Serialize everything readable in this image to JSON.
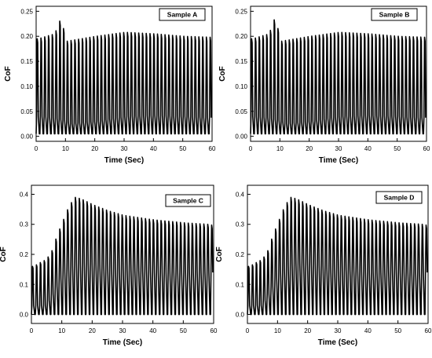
{
  "figure": {
    "background": "#ffffff",
    "line_color": "#000000"
  },
  "chart_data": [
    {
      "type": "line",
      "label": "Sample A",
      "xlabel": "Time (Sec)",
      "ylabel": "CoF",
      "xlim": [
        0,
        60
      ],
      "ylim": [
        -0.01,
        0.26
      ],
      "xticks": [
        0,
        10,
        20,
        30,
        40,
        50,
        60
      ],
      "yticks": [
        0.0,
        0.05,
        0.1,
        0.15,
        0.2,
        0.25
      ],
      "ytick_decimals": 2,
      "legend_position": "top-right",
      "grid": false,
      "series": [
        {
          "cycles_per_sec": 0.78,
          "peak": {
            "x": [
              0.5,
              2,
              6,
              8,
              9,
              10,
              15,
              20,
              30,
              40,
              50,
              60
            ],
            "y": [
              0.195,
              0.198,
              0.205,
              0.235,
              0.215,
              0.19,
              0.195,
              0.2,
              0.208,
              0.205,
              0.2,
              0.198
            ]
          },
          "shoulder": {
            "x": [
              0,
              5,
              10,
              11,
              20,
              30,
              40,
              50,
              60
            ],
            "y": [
              0.04,
              0.038,
              0.03,
              0.025,
              0.03,
              0.04,
              0.042,
              0.04,
              0.037
            ]
          },
          "trough": {
            "x": [
              0,
              60
            ],
            "y": [
              0.005,
              0.005
            ]
          }
        }
      ]
    },
    {
      "type": "line",
      "label": "Sample B",
      "xlabel": "Time (Sec)",
      "ylabel": "CoF",
      "xlim": [
        0,
        60
      ],
      "ylim": [
        -0.01,
        0.26
      ],
      "xticks": [
        0,
        10,
        20,
        30,
        40,
        50,
        60
      ],
      "yticks": [
        0.0,
        0.05,
        0.1,
        0.15,
        0.2,
        0.25
      ],
      "ytick_decimals": 2,
      "legend_position": "top-right",
      "grid": false,
      "series": [
        {
          "cycles_per_sec": 0.78,
          "peak": {
            "x": [
              0.5,
              2,
              6,
              8,
              9,
              10,
              15,
              20,
              30,
              40,
              50,
              60
            ],
            "y": [
              0.195,
              0.198,
              0.205,
              0.238,
              0.215,
              0.19,
              0.195,
              0.2,
              0.208,
              0.205,
              0.2,
              0.198
            ]
          },
          "shoulder": {
            "x": [
              0,
              5,
              10,
              11,
              20,
              30,
              40,
              50,
              60
            ],
            "y": [
              0.04,
              0.038,
              0.03,
              0.025,
              0.03,
              0.04,
              0.042,
              0.04,
              0.037
            ]
          },
          "trough": {
            "x": [
              0,
              60
            ],
            "y": [
              0.005,
              0.005
            ]
          }
        }
      ]
    },
    {
      "type": "line",
      "label": "Sample C",
      "xlabel": "Time (Sec)",
      "ylabel": "CoF",
      "xlim": [
        0,
        60
      ],
      "ylim": [
        -0.03,
        0.43
      ],
      "xticks": [
        0,
        10,
        20,
        30,
        40,
        50,
        60
      ],
      "yticks": [
        0.0,
        0.1,
        0.2,
        0.3,
        0.4
      ],
      "ytick_decimals": 1,
      "legend_position": "top-right",
      "grid": false,
      "series": [
        {
          "cycles_per_sec": 0.78,
          "peak": {
            "x": [
              0.5,
              2,
              4,
              6,
              8,
              10,
              12,
              14,
              16,
              20,
              25,
              30,
              40,
              50,
              58,
              60
            ],
            "y": [
              0.16,
              0.17,
              0.18,
              0.2,
              0.26,
              0.31,
              0.36,
              0.39,
              0.385,
              0.365,
              0.345,
              0.33,
              0.315,
              0.305,
              0.3,
              0.295
            ]
          },
          "shoulder": {
            "x": [
              0,
              4,
              6,
              8,
              10,
              14,
              20,
              30,
              40,
              50,
              60
            ],
            "y": [
              0.03,
              0.03,
              0.06,
              0.1,
              0.14,
              0.17,
              0.17,
              0.15,
              0.14,
              0.14,
              0.14
            ]
          },
          "trough": {
            "x": [
              0,
              60
            ],
            "y": [
              0.0,
              0.0
            ]
          }
        }
      ]
    },
    {
      "type": "line",
      "label": "Sample D",
      "xlabel": "Time (Sec)",
      "ylabel": "CoF",
      "xlim": [
        0,
        60
      ],
      "ylim": [
        -0.03,
        0.43
      ],
      "xticks": [
        0,
        10,
        20,
        30,
        40,
        50,
        60
      ],
      "yticks": [
        0.0,
        0.1,
        0.2,
        0.3,
        0.4
      ],
      "ytick_decimals": 1,
      "legend_position": "top-right",
      "grid": false,
      "series": [
        {
          "cycles_per_sec": 0.78,
          "peak": {
            "x": [
              0.5,
              2,
              4,
              6,
              8,
              10,
              12,
              14,
              16,
              20,
              25,
              30,
              40,
              50,
              58,
              60
            ],
            "y": [
              0.16,
              0.17,
              0.18,
              0.2,
              0.26,
              0.31,
              0.36,
              0.39,
              0.385,
              0.365,
              0.345,
              0.33,
              0.315,
              0.305,
              0.3,
              0.295
            ]
          },
          "shoulder": {
            "x": [
              0,
              4,
              6,
              8,
              10,
              14,
              20,
              30,
              40,
              50,
              60
            ],
            "y": [
              0.03,
              0.03,
              0.06,
              0.1,
              0.14,
              0.17,
              0.17,
              0.15,
              0.14,
              0.14,
              0.14
            ]
          },
          "trough": {
            "x": [
              0,
              60
            ],
            "y": [
              0.0,
              0.0
            ]
          }
        }
      ]
    }
  ]
}
